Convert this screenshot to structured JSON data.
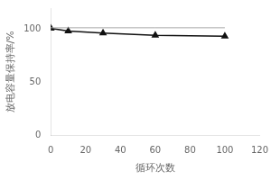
{
  "chart_data": {
    "type": "line",
    "xlabel": "循环次数",
    "ylabel": "放电容量保持率/%",
    "xlim": [
      0,
      120
    ],
    "ylim": [
      0,
      120
    ],
    "xticks": [
      0,
      20,
      40,
      60,
      80,
      100,
      120
    ],
    "yticks": [
      0,
      50,
      100
    ],
    "grid": false,
    "x": [
      0,
      10,
      30,
      60,
      100
    ],
    "series": [
      {
        "color": "#aaaaaa",
        "marker": "none",
        "values": [
          101.5,
          101.5,
          101.5,
          101.5,
          101.5
        ]
      },
      {
        "color": "#111111",
        "marker": "triangle",
        "values": [
          101.0,
          98.5,
          96.5,
          94.5,
          93.5
        ]
      }
    ]
  }
}
